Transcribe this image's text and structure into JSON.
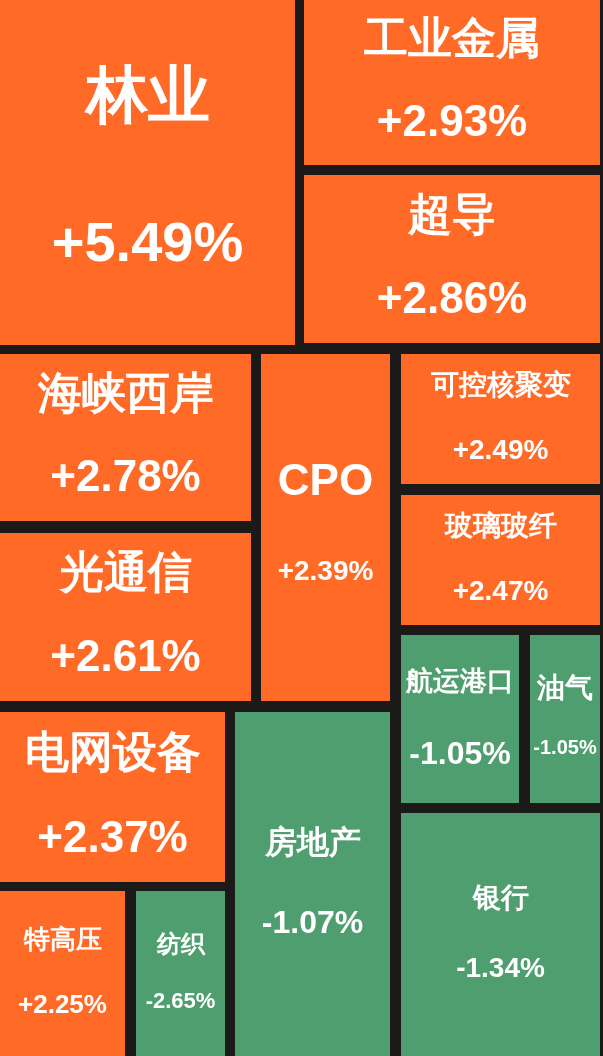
{
  "chart_data": {
    "type": "other",
    "categories": [
      "林业",
      "工业金属",
      "超导",
      "海峡西岸",
      "光通信",
      "CPO",
      "可控核聚变",
      "玻璃玻纤",
      "航运港口",
      "油气",
      "电网设备",
      "房地产",
      "银行",
      "特高压",
      "纺织"
    ],
    "values": [
      5.49,
      2.93,
      2.86,
      2.78,
      2.61,
      2.39,
      2.49,
      2.47,
      -1.05,
      -1.05,
      2.37,
      -1.07,
      -1.34,
      2.25,
      -2.65
    ],
    "value_labels": [
      "+5.49%",
      "+2.93%",
      "+2.86%",
      "+2.78%",
      "+2.61%",
      "+2.39%",
      "+2.49%",
      "+2.47%",
      "-1.05%",
      "-1.05%",
      "+2.37%",
      "-1.07%",
      "-1.34%",
      "+2.25%",
      "-2.65%"
    ],
    "colors": [
      "#ff6a26",
      "#ff6a26",
      "#ff6a26",
      "#ff6a26",
      "#ff6a26",
      "#ff6a26",
      "#ff6a26",
      "#ff6a26",
      "#4f9e6f",
      "#4f9e6f",
      "#ff6a26",
      "#4f9e6f",
      "#4f9e6f",
      "#ff6a26",
      "#4f9e6f"
    ]
  }
}
